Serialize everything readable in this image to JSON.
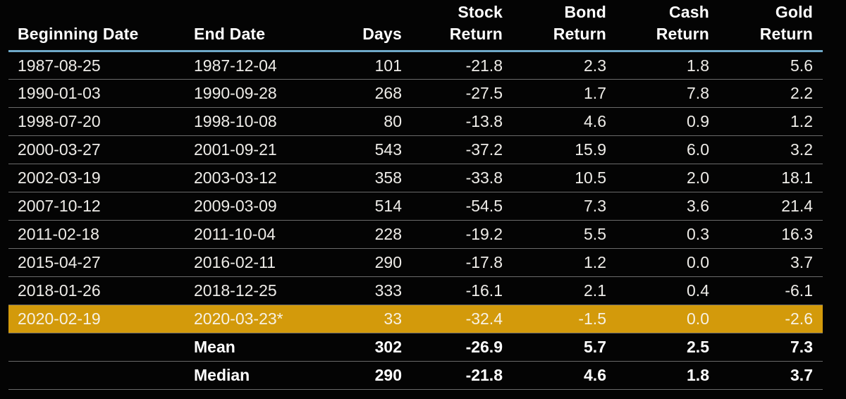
{
  "colors": {
    "bg": "#040404",
    "text": "#eeece8",
    "header_text": "#ffffff",
    "header_rule": "#6fa9c9",
    "row_divider": "#6b6b6b",
    "highlight": "#d39a0b",
    "highlight_text": "#f7f1e3"
  },
  "chart_data": {
    "type": "table",
    "title": "",
    "layout": {
      "grid": "horizontal-row-dividers",
      "header_rule_color": "#6fa9c9",
      "highlighted_row_color": "#d39a0b"
    },
    "columns": [
      {
        "id": "begin",
        "label": "Beginning Date",
        "align": "left"
      },
      {
        "id": "end",
        "label": "End Date",
        "align": "left"
      },
      {
        "id": "days",
        "label": "Days",
        "align": "right"
      },
      {
        "id": "stock",
        "label": "Stock Return",
        "label_lines": [
          "Stock",
          "Return"
        ],
        "align": "right"
      },
      {
        "id": "bond",
        "label": "Bond Return",
        "label_lines": [
          "Bond",
          "Return"
        ],
        "align": "right"
      },
      {
        "id": "cash",
        "label": "Cash Return",
        "label_lines": [
          "Cash",
          "Return"
        ],
        "align": "right"
      },
      {
        "id": "gold",
        "label": "Gold Return",
        "label_lines": [
          "Gold",
          "Return"
        ],
        "align": "right"
      }
    ],
    "rows": [
      {
        "begin": "1987-08-25",
        "end": "1987-12-04",
        "days": 101,
        "stock": -21.8,
        "bond": 2.3,
        "cash": 1.8,
        "gold": 5.6,
        "highlight": false
      },
      {
        "begin": "1990-01-03",
        "end": "1990-09-28",
        "days": 268,
        "stock": -27.5,
        "bond": 1.7,
        "cash": 7.8,
        "gold": 2.2,
        "highlight": false
      },
      {
        "begin": "1998-07-20",
        "end": "1998-10-08",
        "days": 80,
        "stock": -13.8,
        "bond": 4.6,
        "cash": 0.9,
        "gold": 1.2,
        "highlight": false
      },
      {
        "begin": "2000-03-27",
        "end": "2001-09-21",
        "days": 543,
        "stock": -37.2,
        "bond": 15.9,
        "cash": 6.0,
        "gold": 3.2,
        "highlight": false
      },
      {
        "begin": "2002-03-19",
        "end": "2003-03-12",
        "days": 358,
        "stock": -33.8,
        "bond": 10.5,
        "cash": 2.0,
        "gold": 18.1,
        "highlight": false
      },
      {
        "begin": "2007-10-12",
        "end": "2009-03-09",
        "days": 514,
        "stock": -54.5,
        "bond": 7.3,
        "cash": 3.6,
        "gold": 21.4,
        "highlight": false
      },
      {
        "begin": "2011-02-18",
        "end": "2011-10-04",
        "days": 228,
        "stock": -19.2,
        "bond": 5.5,
        "cash": 0.3,
        "gold": 16.3,
        "highlight": false
      },
      {
        "begin": "2015-04-27",
        "end": "2016-02-11",
        "days": 290,
        "stock": -17.8,
        "bond": 1.2,
        "cash": 0.0,
        "gold": 3.7,
        "highlight": false
      },
      {
        "begin": "2018-01-26",
        "end": "2018-12-25",
        "days": 333,
        "stock": -16.1,
        "bond": 2.1,
        "cash": 0.4,
        "gold": -6.1,
        "highlight": false
      },
      {
        "begin": "2020-02-19",
        "end": "2020-03-23*",
        "days": 33,
        "stock": -32.4,
        "bond": -1.5,
        "cash": 0.0,
        "gold": -2.6,
        "highlight": true
      }
    ],
    "summary_rows": [
      {
        "label": "Mean",
        "days": 302,
        "stock": -26.9,
        "bond": 5.7,
        "cash": 2.5,
        "gold": 7.3
      },
      {
        "label": "Median",
        "days": 290,
        "stock": -21.8,
        "bond": 4.6,
        "cash": 1.8,
        "gold": 3.7
      }
    ]
  }
}
